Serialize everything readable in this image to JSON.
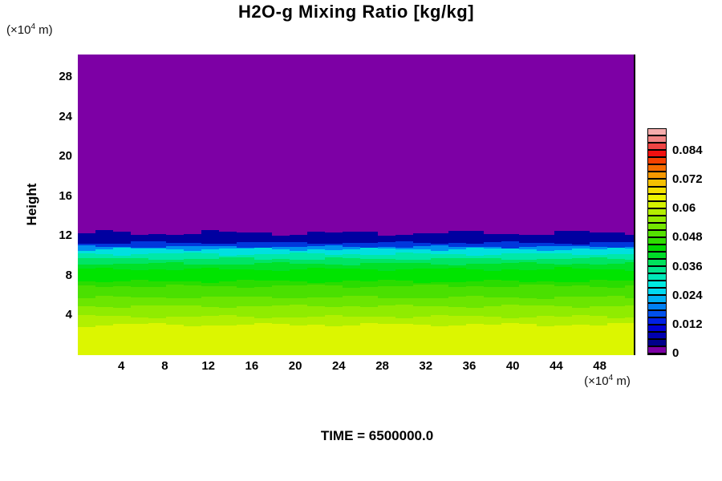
{
  "title": "H2O-g Mixing Ratio [kg/kg]",
  "time_label": "TIME = 6500000.0",
  "axes": {
    "y_label": "Height",
    "y_unit": {
      "prefix": "(×10",
      "exp": "4",
      "suffix": " m)"
    },
    "x_unit": {
      "prefix": "(×10",
      "exp": "4",
      "suffix": " m)"
    },
    "y_ticks": [
      "28",
      "24",
      "20",
      "16",
      "12",
      "8",
      "4"
    ],
    "y_tick_values": [
      28,
      24,
      20,
      16,
      12,
      8,
      4
    ],
    "x_ticks": [
      "4",
      "8",
      "12",
      "16",
      "20",
      "24",
      "28",
      "32",
      "36",
      "40",
      "44",
      "48"
    ],
    "x_tick_values": [
      4,
      8,
      12,
      16,
      20,
      24,
      28,
      32,
      36,
      40,
      44,
      48
    ]
  },
  "colorbar": {
    "min": 0,
    "max": 0.093,
    "cell_step": 0.003,
    "labels": [
      "0",
      "0.012",
      "0.024",
      "0.036",
      "0.048",
      "0.06",
      "0.072",
      "0.084"
    ],
    "label_values": [
      0,
      0.012,
      0.024,
      0.036,
      0.048,
      0.06,
      0.072,
      0.084
    ],
    "cells_bottom_to_top": [
      "#7D00A5",
      "#00008C",
      "#0000B0",
      "#0000D4",
      "#0020E4",
      "#0050EC",
      "#0080F4",
      "#00B0F4",
      "#00D8F0",
      "#00E8E0",
      "#00E8B8",
      "#00E48C",
      "#00E05C",
      "#00DC28",
      "#00D800",
      "#30DC00",
      "#54E000",
      "#74E600",
      "#94EA00",
      "#B4EE00",
      "#D4F200",
      "#ECF400",
      "#F4E000",
      "#F5C000",
      "#F59800",
      "#F56C00",
      "#F54000",
      "#F01010",
      "#EE4444",
      "#F08484",
      "#F4ACAC"
    ]
  },
  "chart_data": {
    "type": "heatmap",
    "subtype": "filled_contour",
    "title": "H2O-g Mixing Ratio [kg/kg]",
    "xlabel_unit": "(x10^4 m)",
    "ylabel": "Height (x10^4 m)",
    "x_range": [
      0,
      51.2
    ],
    "y_range": [
      0,
      30.3
    ],
    "value_unit": "kg/kg",
    "description": "Horizontally stratified water-vapor mixing ratio: near-zero (purple) above height ~12.3x10^4 m, sharp gradient through blue/cyan/green between ~12.3 and ~5, maximum ~0.06 kg/kg (yellow) at the surface. Band edges are slightly wavy.",
    "bands_top_to_bottom": [
      {
        "level_kgkg": 0.0,
        "top_height": 30.3,
        "color": "#7D00A5",
        "jitter": 0
      },
      {
        "level_kgkg": 0.003,
        "top_height": 12.3,
        "color": "#0000A0",
        "jitter": 2.6
      },
      {
        "level_kgkg": 0.012,
        "top_height": 11.33,
        "color": "#0038DC",
        "jitter": 1.4
      },
      {
        "level_kgkg": 0.018,
        "top_height": 10.92,
        "color": "#0090F0",
        "jitter": 1.2
      },
      {
        "level_kgkg": 0.024,
        "top_height": 10.68,
        "color": "#00E0E0",
        "jitter": 1.4
      },
      {
        "level_kgkg": 0.03,
        "top_height": 10.19,
        "color": "#00E8A8",
        "jitter": 1.3
      },
      {
        "level_kgkg": 0.033,
        "top_height": 9.71,
        "color": "#00E465",
        "jitter": 1.3
      },
      {
        "level_kgkg": 0.036,
        "top_height": 9.22,
        "color": "#00E028",
        "jitter": 1.3
      },
      {
        "level_kgkg": 0.042,
        "top_height": 8.66,
        "color": "#00E400",
        "jitter": 1.5
      },
      {
        "level_kgkg": 0.045,
        "top_height": 7.44,
        "color": "#2ADC00",
        "jitter": 1.3
      },
      {
        "level_kgkg": 0.048,
        "top_height": 6.96,
        "color": "#4AE000",
        "jitter": 1.5
      },
      {
        "level_kgkg": 0.051,
        "top_height": 5.83,
        "color": "#6CE600",
        "jitter": 1.4
      },
      {
        "level_kgkg": 0.054,
        "top_height": 4.94,
        "color": "#90EC00",
        "jitter": 1.5
      },
      {
        "level_kgkg": 0.057,
        "top_height": 3.88,
        "color": "#B2F000",
        "jitter": 1.5
      },
      {
        "level_kgkg": 0.06,
        "top_height": 3.07,
        "color": "#DCF600",
        "jitter": 1.6
      }
    ]
  }
}
